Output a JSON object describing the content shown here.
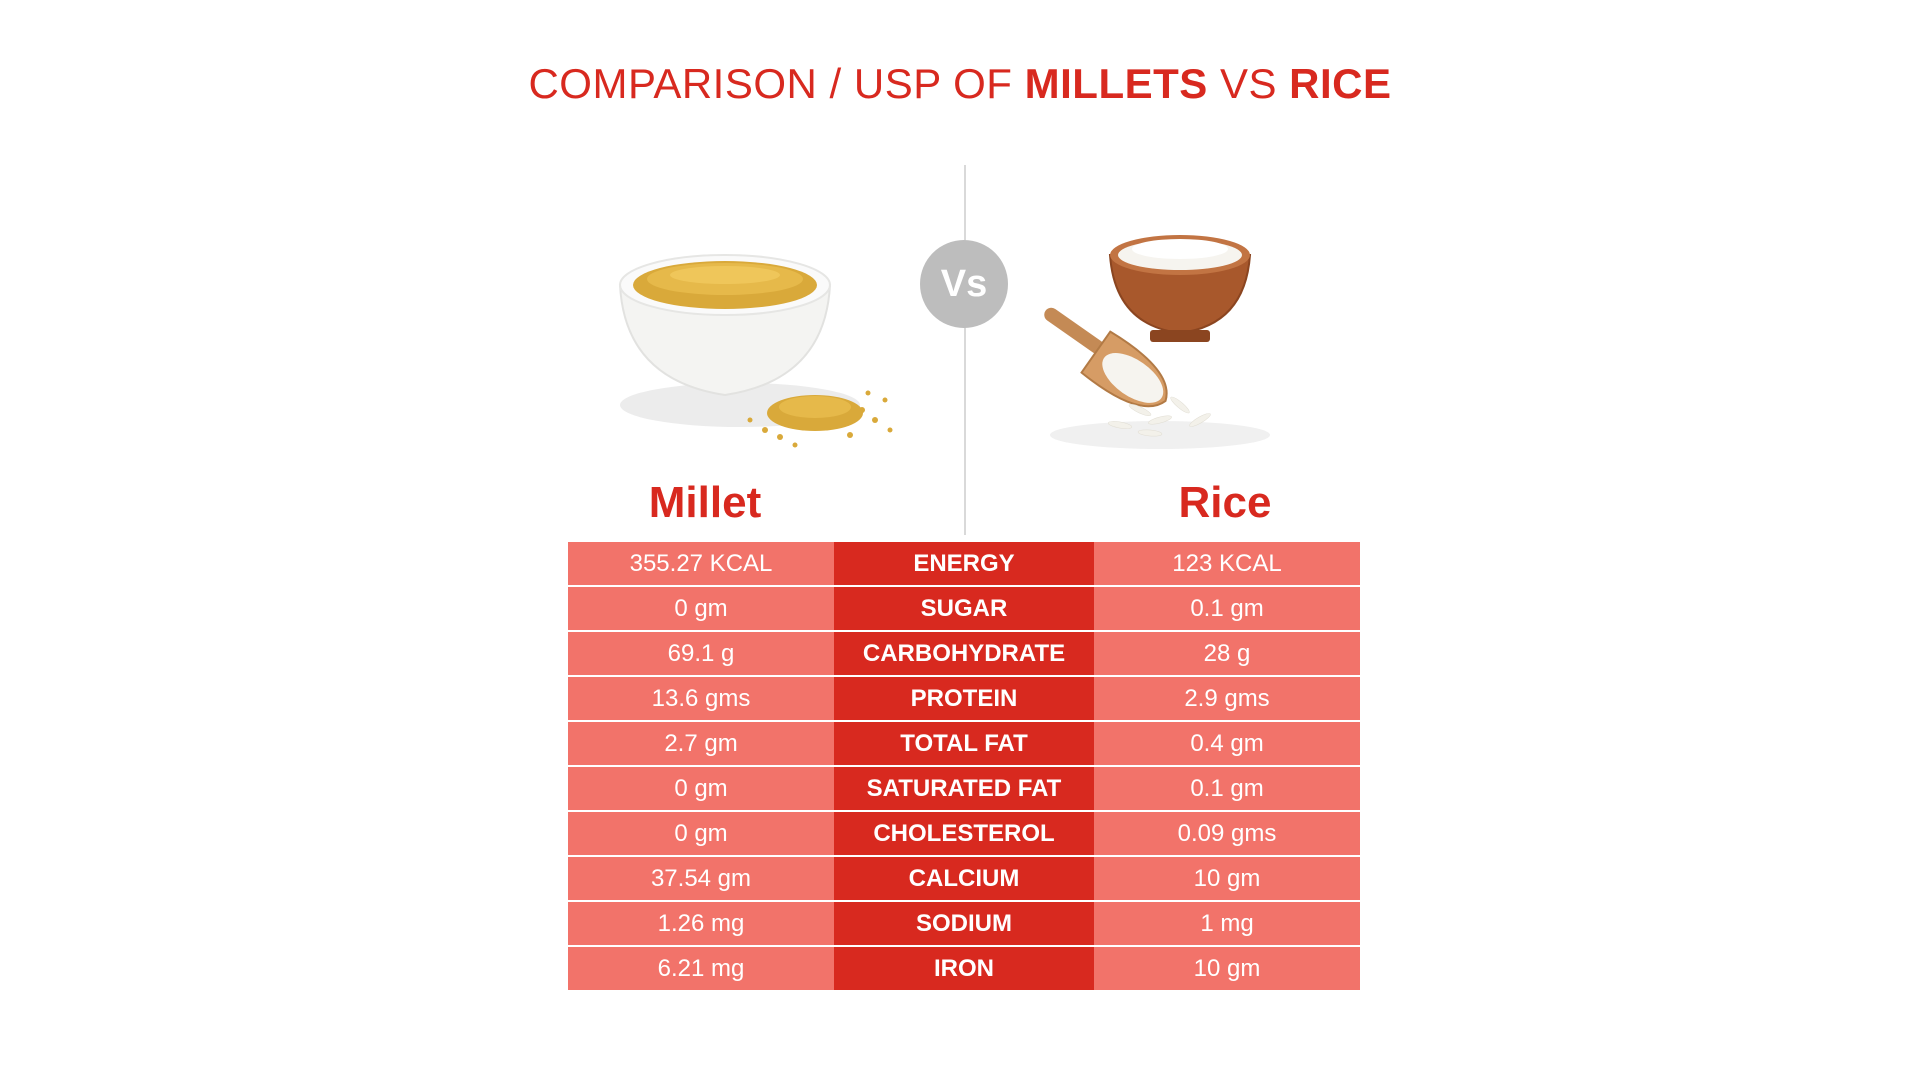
{
  "title": {
    "prefix": "COMPARISON / USP OF ",
    "item1": "MILLETS",
    "middle": " VS ",
    "item2": "RICE"
  },
  "vs_badge": "Vs",
  "labels": {
    "left": "Millet",
    "right": "Rice"
  },
  "colors": {
    "accent": "#d8291f",
    "light": "#f2736a",
    "badge": "#bdbdbd"
  },
  "rows": [
    {
      "millet": "355.27 KCAL",
      "nutrient": "ENERGY",
      "rice": "123 KCAL"
    },
    {
      "millet": "0 gm",
      "nutrient": "SUGAR",
      "rice": "0.1  gm"
    },
    {
      "millet": "69.1 g",
      "nutrient": "CARBOHYDRATE",
      "rice": "28 g"
    },
    {
      "millet": "13.6 gms",
      "nutrient": "PROTEIN",
      "rice": "2.9 gms"
    },
    {
      "millet": "2.7 gm",
      "nutrient": "TOTAL FAT",
      "rice": "0.4 gm"
    },
    {
      "millet": "0 gm",
      "nutrient": "SATURATED FAT",
      "rice": "0.1 gm"
    },
    {
      "millet": "0 gm",
      "nutrient": "CHOLESTEROL",
      "rice": "0.09 gms"
    },
    {
      "millet": "37.54 gm",
      "nutrient": "CALCIUM",
      "rice": "10 gm"
    },
    {
      "millet": "1.26 mg",
      "nutrient": "SODIUM",
      "rice": "1 mg"
    },
    {
      "millet": "6.21 mg",
      "nutrient": "IRON",
      "rice": "10 gm"
    }
  ]
}
